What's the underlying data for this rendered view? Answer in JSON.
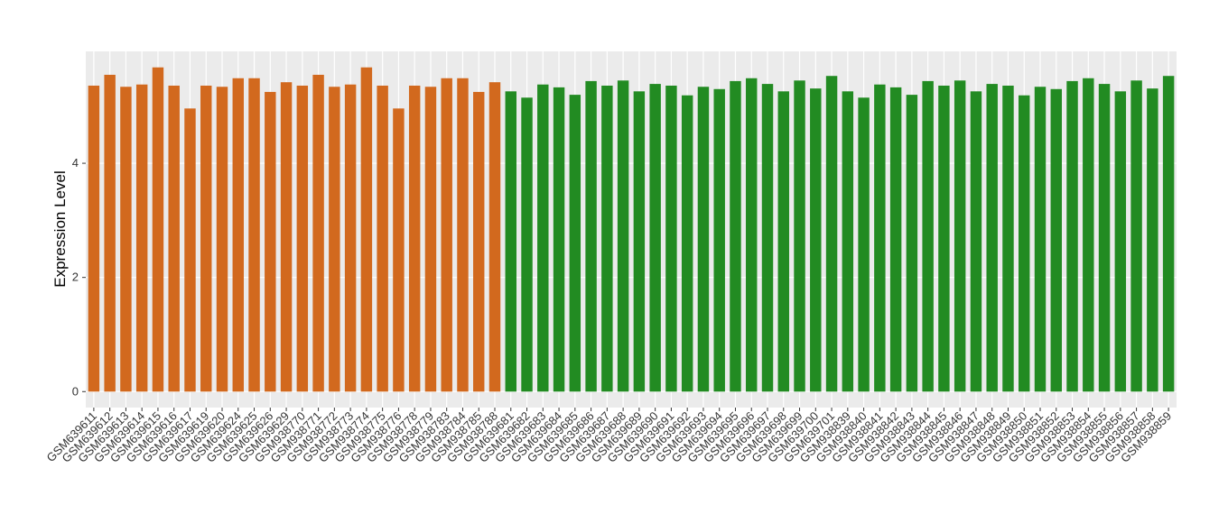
{
  "chart_data": {
    "type": "bar",
    "y_label": "Expression Level",
    "categories": [
      "GSM639611",
      "GSM639612",
      "GSM639613",
      "GSM639614",
      "GSM639615",
      "GSM639616",
      "GSM639617",
      "GSM639619",
      "GSM639620",
      "GSM639624",
      "GSM639625",
      "GSM639626",
      "GSM639629",
      "GSM938770",
      "GSM938771",
      "GSM938772",
      "GSM938773",
      "GSM938774",
      "GSM938775",
      "GSM938776",
      "GSM938778",
      "GSM938779",
      "GSM938783",
      "GSM938784",
      "GSM938785",
      "GSM938788",
      "GSM639681",
      "GSM639682",
      "GSM639683",
      "GSM639684",
      "GSM639685",
      "GSM639686",
      "GSM639687",
      "GSM639688",
      "GSM639689",
      "GSM639690",
      "GSM639691",
      "GSM639692",
      "GSM639693",
      "GSM639694",
      "GSM639695",
      "GSM639696",
      "GSM639697",
      "GSM639698",
      "GSM639699",
      "GSM639700",
      "GSM639701",
      "GSM938839",
      "GSM938840",
      "GSM938841",
      "GSM938842",
      "GSM938843",
      "GSM938844",
      "GSM938845",
      "GSM938846",
      "GSM938847",
      "GSM938848",
      "GSM938849",
      "GSM938850",
      "GSM938851",
      "GSM938852",
      "GSM938853",
      "GSM938854",
      "GSM938855",
      "GSM938856",
      "GSM938857",
      "GSM938858",
      "GSM938859"
    ],
    "series": [
      {
        "color": "#d2691e",
        "values": [
          5.36,
          5.55,
          5.34,
          5.38,
          5.68,
          5.36,
          4.96,
          5.36,
          5.34,
          5.49,
          5.49,
          5.25,
          5.42,
          5.36,
          5.55,
          5.34,
          5.38,
          5.68,
          5.36,
          4.96,
          5.36,
          5.34,
          5.49,
          5.49,
          5.25,
          5.42,
          null,
          null,
          null,
          null,
          null,
          null,
          null,
          null,
          null,
          null,
          null,
          null,
          null,
          null,
          null,
          null,
          null,
          null,
          null,
          null,
          null,
          null,
          null,
          null,
          null,
          null,
          null,
          null,
          null,
          null,
          null,
          null,
          null,
          null,
          null,
          null,
          null,
          null,
          null,
          null,
          null,
          null
        ]
      },
      {
        "color": "#228b22",
        "values": [
          null,
          null,
          null,
          null,
          null,
          null,
          null,
          null,
          null,
          null,
          null,
          null,
          null,
          null,
          null,
          null,
          null,
          null,
          null,
          null,
          null,
          null,
          null,
          null,
          null,
          null,
          5.26,
          5.15,
          5.38,
          5.33,
          5.2,
          5.44,
          5.36,
          5.45,
          5.26,
          5.39,
          5.36,
          5.19,
          5.34,
          5.3,
          5.44,
          5.49,
          5.39,
          5.26,
          5.45,
          5.31,
          5.53,
          5.26,
          5.15,
          5.38,
          5.33,
          5.2,
          5.44,
          5.36,
          5.45,
          5.26,
          5.39,
          5.36,
          5.19,
          5.34,
          5.3,
          5.44,
          5.49,
          5.39,
          5.26,
          5.45,
          5.31,
          5.53
        ]
      }
    ],
    "ylim": [
      -0.28,
      5.96
    ],
    "yticks": [
      0,
      2,
      4
    ],
    "grid": true
  }
}
